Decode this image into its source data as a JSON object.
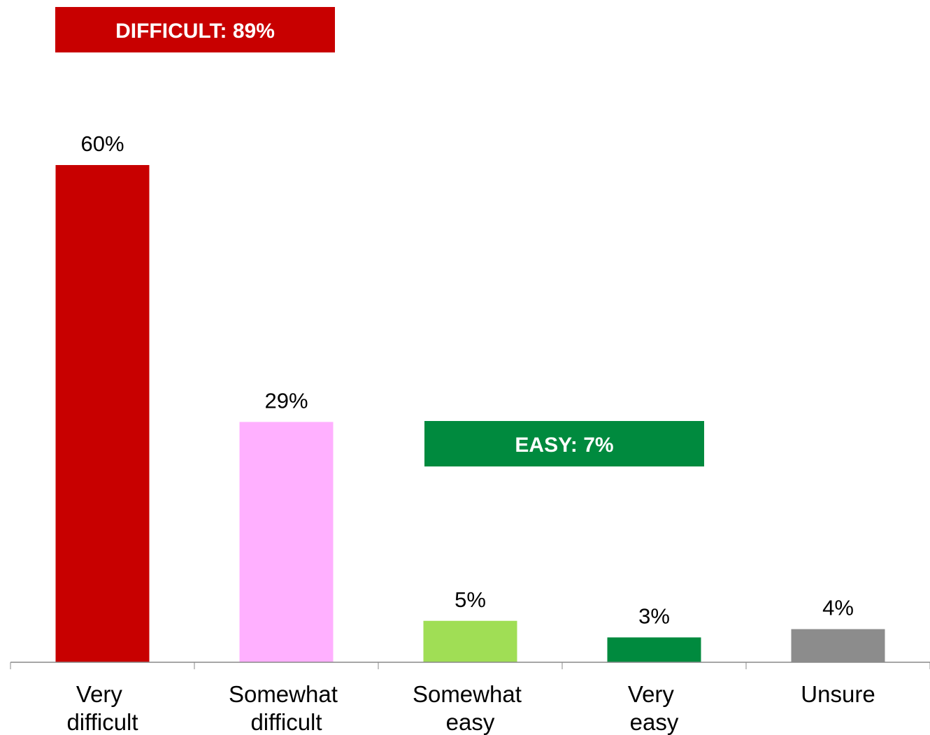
{
  "chart_data": {
    "type": "bar",
    "categories": [
      "Very difficult",
      "Somewhat difficult",
      "Somewhat easy",
      "Very easy",
      "Unsure"
    ],
    "values": [
      60,
      29,
      5,
      3,
      4
    ],
    "value_labels": [
      "60%",
      "29%",
      "5%",
      "3%",
      "4%"
    ],
    "colors": [
      "#c80000",
      "#ffb0ff",
      "#a0de55",
      "#008a3e",
      "#8c8c8c"
    ],
    "ylim": [
      0,
      60
    ],
    "annotations": [
      {
        "text": "DIFFICULT: 89%",
        "color": "#c80000"
      },
      {
        "text": "EASY: 7%",
        "color": "#008a3e"
      }
    ]
  }
}
